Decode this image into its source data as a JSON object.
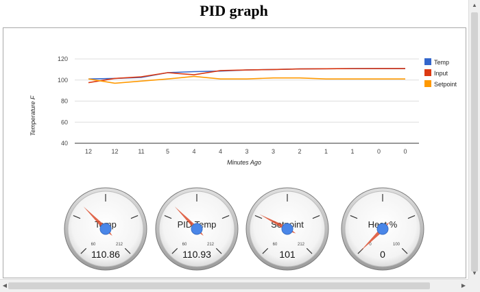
{
  "page": {
    "title": "PID graph"
  },
  "chart_data": {
    "type": "line",
    "title": "",
    "xlabel": "Minutes Ago",
    "ylabel": "Temperature F",
    "categories": [
      "12",
      "12",
      "11",
      "5",
      "4",
      "4",
      "3",
      "3",
      "2",
      "1",
      "1",
      "0",
      "0"
    ],
    "ylim": [
      40,
      120
    ],
    "yticks": [
      40,
      60,
      80,
      100,
      120
    ],
    "grid": true,
    "legend_position": "right",
    "series": [
      {
        "name": "Temp",
        "color": "#3366cc",
        "values": [
          101,
          101.5,
          102.5,
          107,
          108,
          108.5,
          109.5,
          110,
          110.5,
          110.7,
          110.8,
          110.86,
          110.86
        ]
      },
      {
        "name": "Input",
        "color": "#dc3912",
        "values": [
          97.5,
          101.5,
          103,
          107,
          105,
          109,
          109.5,
          110,
          110.5,
          110.7,
          110.9,
          110.93,
          110.93
        ]
      },
      {
        "name": "Setpoint",
        "color": "#ff9900",
        "values": [
          101,
          97,
          99,
          101,
          103.5,
          101,
          101,
          102,
          102,
          101,
          101,
          101,
          101
        ]
      }
    ]
  },
  "gauges": [
    {
      "label": "Temp",
      "value_text": "110.86",
      "value": 110.86,
      "min": 60,
      "max": 212,
      "min_label": "60",
      "max_label": "212"
    },
    {
      "label": "PID Temp",
      "value_text": "110.93",
      "value": 110.93,
      "min": 60,
      "max": 212,
      "min_label": "60",
      "max_label": "212"
    },
    {
      "label": "Setpoint",
      "value_text": "101",
      "value": 101,
      "min": 60,
      "max": 212,
      "min_label": "60",
      "max_label": "212"
    },
    {
      "label": "Heat %",
      "value_text": "0",
      "value": 0,
      "min": 0,
      "max": 100,
      "min_label": "0",
      "max_label": "100"
    }
  ]
}
